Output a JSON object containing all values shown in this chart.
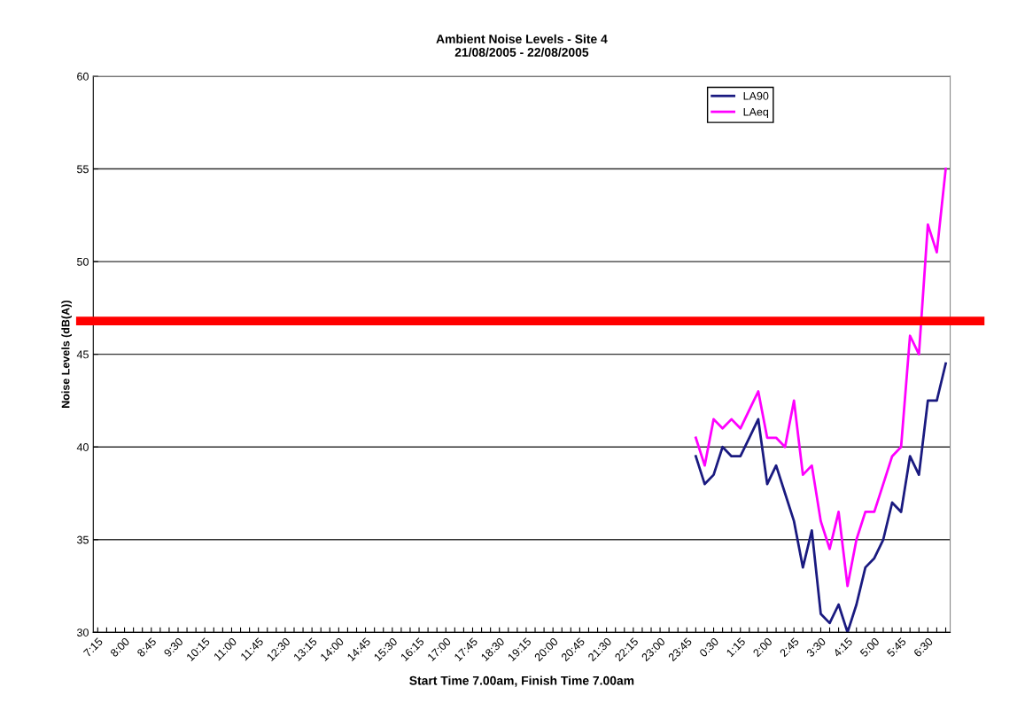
{
  "chart_data": {
    "type": "line",
    "title": "Ambient Noise Levels - Site 4\n21/08/2005 - 22/08/2005",
    "xlabel": "Start Time 7.00am, Finish Time 7.00am",
    "ylabel": "Noise Levels (dB(A))",
    "categories": [
      "7:15",
      null,
      null,
      "8:00",
      null,
      null,
      "8:45",
      null,
      null,
      "9:30",
      null,
      null,
      "10:15",
      null,
      null,
      "11:00",
      null,
      null,
      "11:45",
      null,
      null,
      "12:30",
      null,
      null,
      "13:15",
      null,
      null,
      "14:00",
      null,
      null,
      "14:45",
      null,
      null,
      "15:30",
      null,
      null,
      "16:15",
      null,
      null,
      "17:00",
      null,
      null,
      "17:45",
      null,
      null,
      "18:30",
      null,
      null,
      "19:15",
      null,
      null,
      "20:00",
      null,
      null,
      "20:45",
      null,
      null,
      "21:30",
      null,
      null,
      "22:15",
      null,
      null,
      "23:00",
      null,
      null,
      "23:45",
      null,
      null,
      "0:30",
      null,
      null,
      "1:15",
      null,
      null,
      "2:00",
      null,
      null,
      "2:45",
      null,
      null,
      "3:30",
      null,
      null,
      "4:15",
      null,
      null,
      "5:00",
      null,
      null,
      "5:45",
      null,
      null,
      "6:30",
      null,
      null
    ],
    "series": [
      {
        "name": "LA90",
        "color": "#1a1a80",
        "values": [
          null,
          null,
          null,
          null,
          null,
          null,
          null,
          null,
          null,
          null,
          null,
          null,
          null,
          null,
          null,
          null,
          null,
          null,
          null,
          null,
          null,
          null,
          null,
          null,
          null,
          null,
          null,
          null,
          null,
          null,
          null,
          null,
          null,
          null,
          null,
          null,
          null,
          null,
          null,
          null,
          null,
          null,
          null,
          null,
          null,
          null,
          null,
          null,
          null,
          null,
          null,
          null,
          null,
          null,
          null,
          null,
          null,
          null,
          null,
          null,
          null,
          null,
          null,
          null,
          null,
          null,
          null,
          39.5,
          38,
          38.5,
          40,
          39.5,
          39.5,
          40.5,
          41.5,
          38,
          39,
          37.5,
          36,
          33.5,
          35.5,
          31,
          30.5,
          31.5,
          30,
          31.5,
          33.5,
          34,
          35,
          37,
          36.5,
          39.5,
          38.5,
          42.5,
          42.5,
          44.5
        ]
      },
      {
        "name": "LAeq",
        "color": "#ff00ff",
        "values": [
          null,
          null,
          null,
          null,
          null,
          null,
          null,
          null,
          null,
          null,
          null,
          null,
          null,
          null,
          null,
          null,
          null,
          null,
          null,
          null,
          null,
          null,
          null,
          null,
          null,
          null,
          null,
          null,
          null,
          null,
          null,
          null,
          null,
          null,
          null,
          null,
          null,
          null,
          null,
          null,
          null,
          null,
          null,
          null,
          null,
          null,
          null,
          null,
          null,
          null,
          null,
          null,
          null,
          null,
          null,
          null,
          null,
          null,
          null,
          null,
          null,
          null,
          null,
          null,
          null,
          null,
          null,
          40.5,
          39,
          41.5,
          41,
          41.5,
          41,
          42,
          43,
          40.5,
          40.5,
          40,
          42.5,
          38.5,
          39,
          36,
          34.5,
          36.5,
          32.5,
          35,
          36.5,
          36.5,
          38,
          39.5,
          40,
          46,
          45,
          52,
          50.5,
          55
        ]
      }
    ],
    "ylim": [
      30,
      60
    ],
    "yticks": [
      30,
      35,
      40,
      45,
      50,
      55,
      60
    ],
    "ref_lines": [
      {
        "axis": "y",
        "value": 46.8,
        "color": "#ff0000"
      }
    ],
    "grid": "y",
    "legend": "top right",
    "marker": "none",
    "line_style": "solid"
  }
}
